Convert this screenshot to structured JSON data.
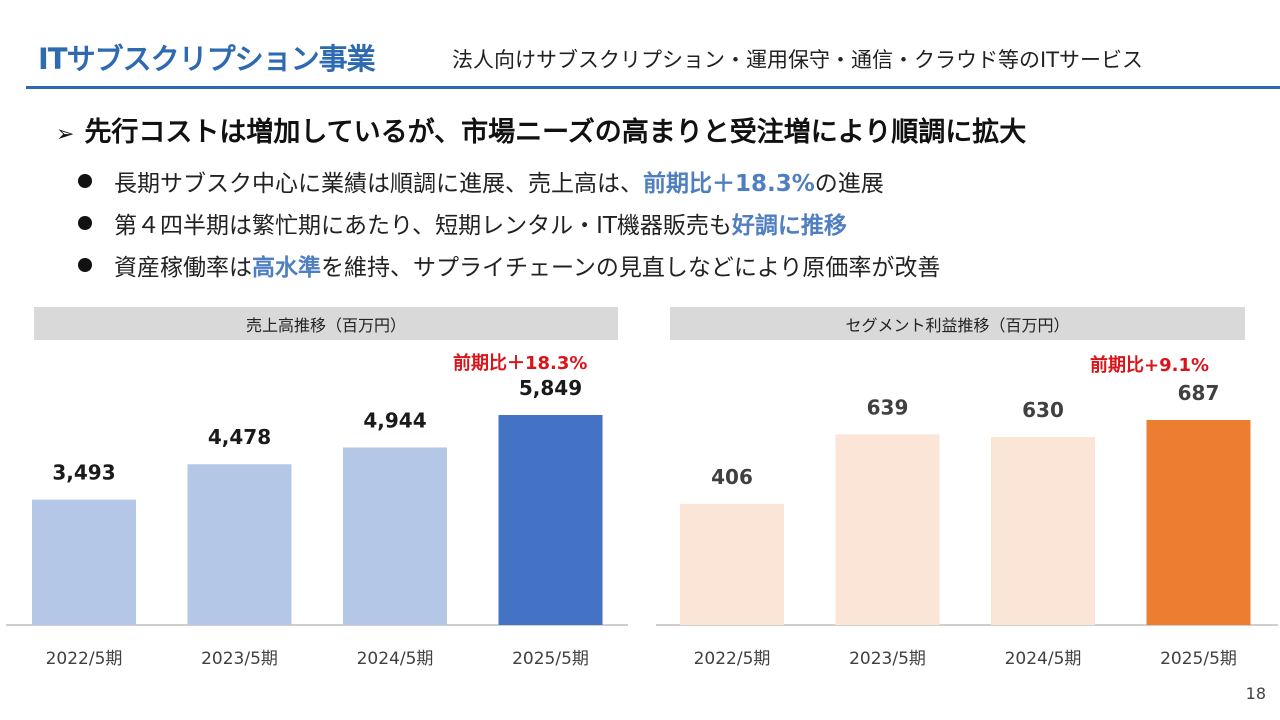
{
  "header": {
    "title": "ITサブスクリプション事業",
    "subtitle": "法人向けサブスクリプション・運用保守・通信・クラウド等のITサービス"
  },
  "headline": "先行コストは増加しているが、市場ニーズの高まりと受注増により順調に拡大",
  "bullets": [
    {
      "pre": "長期サブスク中心に業績は順調に進展、売上高は、",
      "hl": "前期比＋18.3%",
      "post": "の進展"
    },
    {
      "pre": "第４四半期は繁忙期にあたり、短期レンタル・IT機器販売も",
      "hl": "好調に推移",
      "post": ""
    },
    {
      "pre": "資産稼働率は",
      "hl": "高水準",
      "post": "を維持、サプライチェーンの見直しなどにより原価率が改善"
    }
  ],
  "page_number": "18",
  "chart_data": [
    {
      "type": "bar",
      "title": "売上高推移（百万円）",
      "categories": [
        "2022/5期",
        "2023/5期",
        "2024/5期",
        "2025/5期"
      ],
      "values": [
        3493,
        4478,
        4944,
        5849
      ],
      "value_labels": [
        "3,493",
        "4,478",
        "4,944",
        "5,849"
      ],
      "annotation": "前期比＋18.3%",
      "colors": [
        "#b4c7e7",
        "#b4c7e7",
        "#b4c7e7",
        "#4472c4"
      ],
      "ylim": [
        0,
        5849
      ],
      "grid": false
    },
    {
      "type": "bar",
      "title": "セグメント利益推移（百万円）",
      "categories": [
        "2022/5期",
        "2023/5期",
        "2024/5期",
        "2025/5期"
      ],
      "values": [
        406,
        639,
        630,
        687
      ],
      "value_labels": [
        "406",
        "639",
        "630",
        "687"
      ],
      "annotation": "前期比+9.1%",
      "colors": [
        "#fbe5d6",
        "#fbe5d6",
        "#fbe5d6",
        "#ed7d31"
      ],
      "ylim": [
        0,
        687
      ],
      "grid": false
    }
  ]
}
